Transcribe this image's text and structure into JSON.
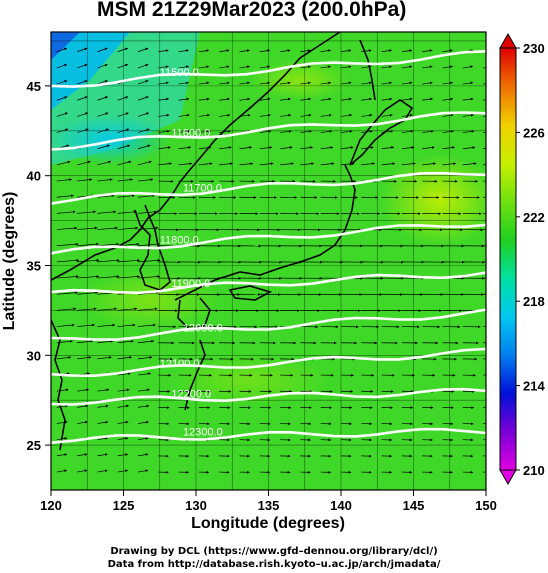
{
  "title": "MSM 21Z29Mar2023 (200.0hPa)",
  "chart_data": {
    "type": "heatmap",
    "xlabel": "Longitude (degrees)",
    "ylabel": "Latitude  (degrees)",
    "xlim": [
      120,
      150
    ],
    "ylim": [
      22.5,
      48
    ],
    "xticks": [
      120,
      125,
      130,
      135,
      140,
      145,
      150
    ],
    "yticks": [
      25,
      30,
      35,
      40,
      45
    ],
    "colorbar": {
      "min": 210,
      "max": 230,
      "ticks": [
        210,
        214,
        218,
        222,
        226,
        230
      ],
      "colors": [
        "#e000e0",
        "#7a00d8",
        "#0010d8",
        "#0080f0",
        "#00c8f0",
        "#00e0a0",
        "#20d020",
        "#70e010",
        "#c8f000",
        "#f0d000",
        "#f07000",
        "#e00000"
      ]
    },
    "contours": [
      {
        "label": "11500.0",
        "lat_w": 45.0,
        "lat_e": 46.8
      },
      {
        "label": "11600.0",
        "lat_w": 41.6,
        "lat_e": 43.5
      },
      {
        "label": "11700.0",
        "lat_w": 38.6,
        "lat_e": 40.2
      },
      {
        "label": "11800.0",
        "lat_w": 35.7,
        "lat_e": 37.4
      },
      {
        "label": "11900.0",
        "lat_w": 33.4,
        "lat_e": 34.6
      },
      {
        "label": "12000.0",
        "lat_w": 30.8,
        "lat_e": 32.4
      },
      {
        "label": "12100.0",
        "lat_w": 28.9,
        "lat_e": 30.2
      },
      {
        "label": "12200.0",
        "lat_w": 27.4,
        "lat_e": 28.0
      },
      {
        "label": "12300.0",
        "lat_w": 25.3,
        "lat_e": 25.8
      }
    ],
    "grid": true
  },
  "credits": [
    "Drawing by DCL (https://www.gfd–dennou.org/library/dcl/)",
    "Data from http://database.rish.kyoto–u.ac.jp/arch/jmadata/"
  ]
}
